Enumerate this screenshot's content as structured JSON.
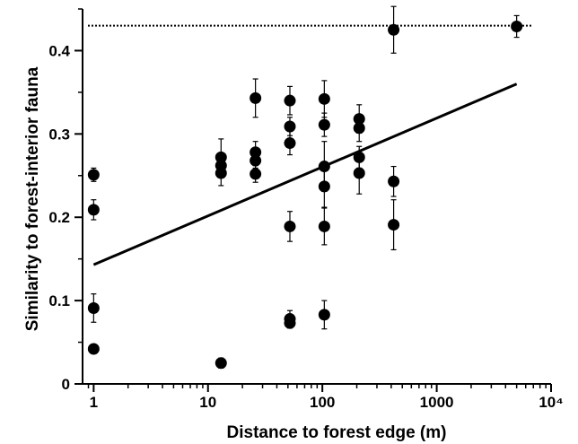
{
  "chart_data": {
    "type": "scatter",
    "title": "",
    "xlabel": "Distance to forest edge (m)",
    "ylabel": "Similarity to forest-interior fauna",
    "x_scale": "log",
    "xlim": [
      0.8,
      10000
    ],
    "ylim": [
      0,
      0.45
    ],
    "x_ticks": [
      {
        "value": 1,
        "label": "1"
      },
      {
        "value": 10,
        "label": "10"
      },
      {
        "value": 100,
        "label": "100"
      },
      {
        "value": 1000,
        "label": "1000"
      },
      {
        "value": 10000,
        "label": "10⁴"
      }
    ],
    "y_ticks": [
      {
        "value": 0,
        "label": "0"
      },
      {
        "value": 0.1,
        "label": "0.1"
      },
      {
        "value": 0.2,
        "label": "0.2"
      },
      {
        "value": 0.3,
        "label": "0.3"
      },
      {
        "value": 0.4,
        "label": "0.4"
      }
    ],
    "grid": false,
    "legend": "none",
    "marker_color": "#000000",
    "points": [
      {
        "x": 1,
        "y": 0.251,
        "err": 0.008
      },
      {
        "x": 1,
        "y": 0.209,
        "err": 0.012
      },
      {
        "x": 1,
        "y": 0.091,
        "err": 0.017
      },
      {
        "x": 1,
        "y": 0.042,
        "err": 0.005
      },
      {
        "x": 13,
        "y": 0.272,
        "err": 0.022
      },
      {
        "x": 13,
        "y": 0.262,
        "err": 0.01
      },
      {
        "x": 13,
        "y": 0.253,
        "err": 0.015
      },
      {
        "x": 13,
        "y": 0.025,
        "err": 0.006
      },
      {
        "x": 26,
        "y": 0.343,
        "err": 0.023
      },
      {
        "x": 26,
        "y": 0.278,
        "err": 0.013
      },
      {
        "x": 26,
        "y": 0.268,
        "err": 0.009
      },
      {
        "x": 26,
        "y": 0.252,
        "err": 0.01
      },
      {
        "x": 52,
        "y": 0.34,
        "err": 0.017
      },
      {
        "x": 52,
        "y": 0.309,
        "err": 0.011
      },
      {
        "x": 52,
        "y": 0.289,
        "err": 0.014
      },
      {
        "x": 52,
        "y": 0.189,
        "err": 0.018
      },
      {
        "x": 52,
        "y": 0.078,
        "err": 0.01
      },
      {
        "x": 52,
        "y": 0.073,
        "err": 0.006
      },
      {
        "x": 104,
        "y": 0.342,
        "err": 0.022
      },
      {
        "x": 104,
        "y": 0.311,
        "err": 0.014
      },
      {
        "x": 104,
        "y": 0.261,
        "err": 0.03
      },
      {
        "x": 104,
        "y": 0.237,
        "err": 0.025
      },
      {
        "x": 104,
        "y": 0.189,
        "err": 0.022
      },
      {
        "x": 104,
        "y": 0.083,
        "err": 0.017
      },
      {
        "x": 210,
        "y": 0.318,
        "err": 0.017
      },
      {
        "x": 210,
        "y": 0.307,
        "err": 0.016
      },
      {
        "x": 210,
        "y": 0.272,
        "err": 0.013
      },
      {
        "x": 210,
        "y": 0.253,
        "err": 0.025
      },
      {
        "x": 420,
        "y": 0.425,
        "err": 0.028
      },
      {
        "x": 420,
        "y": 0.243,
        "err": 0.018
      },
      {
        "x": 420,
        "y": 0.191,
        "err": 0.03
      },
      {
        "x": 5000,
        "y": 0.429,
        "err": 0.013
      }
    ],
    "regression_line": {
      "x": [
        1,
        5000
      ],
      "y": [
        0.143,
        0.36
      ]
    },
    "reference_line": {
      "y": 0.43,
      "style": "dotted"
    }
  }
}
